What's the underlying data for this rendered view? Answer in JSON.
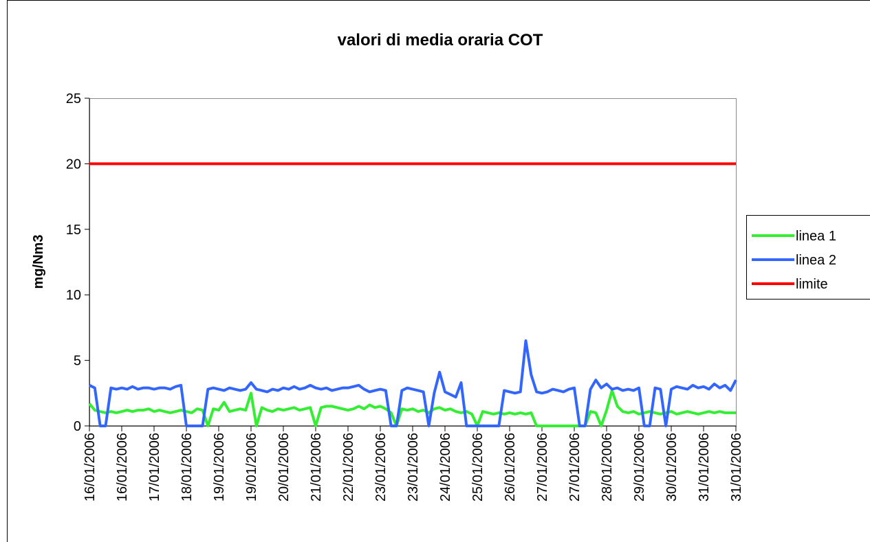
{
  "chart_data": {
    "type": "line",
    "title": "valori di media oraria COT",
    "y_label": "mg/Nm3",
    "categories": [
      "16/01/2006",
      null,
      null,
      null,
      null,
      null,
      "16/01/2006",
      null,
      null,
      null,
      null,
      null,
      "17/01/2006",
      null,
      null,
      null,
      null,
      null,
      "18/01/2006",
      null,
      null,
      null,
      null,
      null,
      "19/01/2006",
      null,
      null,
      null,
      null,
      null,
      "19/01/2006",
      null,
      null,
      null,
      null,
      null,
      "20/01/2006",
      null,
      null,
      null,
      null,
      null,
      "21/01/2006",
      null,
      null,
      null,
      null,
      null,
      "22/01/2006",
      null,
      null,
      null,
      null,
      null,
      "23/01/2006",
      null,
      null,
      null,
      null,
      null,
      "23/01/2006",
      null,
      null,
      null,
      null,
      null,
      "24/01/2006",
      null,
      null,
      null,
      null,
      null,
      "25/01/2006",
      null,
      null,
      null,
      null,
      null,
      "26/01/2006",
      null,
      null,
      null,
      null,
      null,
      "27/01/2006",
      null,
      null,
      null,
      null,
      null,
      "27/01/2006",
      null,
      null,
      null,
      null,
      null,
      "28/01/2006",
      null,
      null,
      null,
      null,
      null,
      "29/01/2006",
      null,
      null,
      null,
      null,
      null,
      "30/01/2006",
      null,
      null,
      null,
      null,
      null,
      "31/01/2006",
      null,
      null,
      null,
      null,
      null,
      "31/01/2006"
    ],
    "series": [
      {
        "name": "linea 1",
        "color": "#33ee33",
        "values": [
          1.7,
          1.2,
          1.1,
          1.0,
          1.1,
          1.0,
          1.1,
          1.2,
          1.1,
          1.2,
          1.2,
          1.3,
          1.1,
          1.2,
          1.1,
          1.0,
          1.1,
          1.2,
          1.1,
          1.0,
          1.3,
          1.2,
          0,
          1.3,
          1.2,
          1.8,
          1.1,
          1.2,
          1.3,
          1.2,
          2.5,
          0,
          1.4,
          1.2,
          1.1,
          1.3,
          1.2,
          1.3,
          1.4,
          1.2,
          1.3,
          1.4,
          0,
          1.4,
          1.5,
          1.5,
          1.4,
          1.3,
          1.2,
          1.3,
          1.5,
          1.3,
          1.6,
          1.4,
          1.5,
          1.3,
          1.0,
          0,
          1.3,
          1.2,
          1.3,
          1.1,
          1.2,
          1.0,
          1.3,
          1.4,
          1.2,
          1.3,
          1.1,
          1.0,
          1.1,
          0.9,
          0,
          1.1,
          1.0,
          0.9,
          1.0,
          0.9,
          1.0,
          0.9,
          1.0,
          0.9,
          1.0,
          0,
          0,
          0,
          0,
          0,
          0,
          0,
          0,
          0,
          0,
          1.1,
          1.0,
          0,
          1.2,
          2.7,
          1.5,
          1.1,
          1.0,
          1.1,
          0.9,
          1.0,
          1.1,
          1.0,
          0.9,
          1.0,
          1.1,
          0.9,
          1.0,
          1.1,
          1.0,
          0.9,
          1.0,
          1.1,
          1.0,
          1.1,
          1.0,
          1.0,
          1.0
        ]
      },
      {
        "name": "linea 2",
        "color": "#3366ff",
        "values": [
          3.1,
          2.9,
          0,
          0,
          2.9,
          2.8,
          2.9,
          2.8,
          3.0,
          2.8,
          2.9,
          2.9,
          2.8,
          2.9,
          2.9,
          2.8,
          3.0,
          3.1,
          0,
          0,
          0,
          0,
          2.8,
          2.9,
          2.8,
          2.7,
          2.9,
          2.8,
          2.7,
          2.8,
          3.3,
          2.8,
          2.7,
          2.6,
          2.8,
          2.7,
          2.9,
          2.8,
          3.0,
          2.8,
          2.9,
          3.1,
          2.9,
          2.8,
          2.9,
          2.7,
          2.8,
          2.9,
          2.9,
          3.0,
          3.1,
          2.8,
          2.6,
          2.7,
          2.8,
          2.7,
          0,
          0,
          2.7,
          2.9,
          2.8,
          2.7,
          2.6,
          0,
          2.5,
          4.1,
          2.6,
          2.4,
          2.2,
          3.3,
          0,
          0,
          0,
          0,
          0,
          0,
          0,
          2.7,
          2.6,
          2.5,
          2.6,
          6.5,
          3.9,
          2.6,
          2.5,
          2.6,
          2.8,
          2.7,
          2.6,
          2.8,
          2.9,
          0,
          0,
          2.8,
          3.5,
          2.9,
          3.2,
          2.8,
          2.9,
          2.7,
          2.8,
          2.7,
          2.9,
          0,
          0,
          2.9,
          2.8,
          0,
          2.8,
          3.0,
          2.9,
          2.8,
          3.1,
          2.9,
          3.0,
          2.8,
          3.2,
          2.9,
          3.1,
          2.7,
          3.5
        ]
      },
      {
        "name": "limite",
        "color": "#ff0000",
        "values": [
          20,
          20,
          20,
          20,
          20,
          20,
          20,
          20,
          20,
          20,
          20,
          20,
          20,
          20,
          20,
          20,
          20,
          20,
          20,
          20,
          20,
          20,
          20,
          20,
          20,
          20,
          20,
          20,
          20,
          20,
          20,
          20,
          20,
          20,
          20,
          20,
          20,
          20,
          20,
          20,
          20,
          20,
          20,
          20,
          20,
          20,
          20,
          20,
          20,
          20,
          20,
          20,
          20,
          20,
          20,
          20,
          20,
          20,
          20,
          20,
          20,
          20,
          20,
          20,
          20,
          20,
          20,
          20,
          20,
          20,
          20,
          20,
          20,
          20,
          20,
          20,
          20,
          20,
          20,
          20,
          20,
          20,
          20,
          20,
          20,
          20,
          20,
          20,
          20,
          20,
          20,
          20,
          20,
          20,
          20,
          20,
          20,
          20,
          20,
          20,
          20,
          20,
          20,
          20,
          20,
          20,
          20,
          20,
          20,
          20,
          20,
          20,
          20,
          20,
          20,
          20,
          20,
          20,
          20,
          20,
          20
        ]
      }
    ],
    "ylim": [
      0,
      25
    ],
    "yticks": [
      0,
      5,
      10,
      15,
      20,
      25
    ],
    "legend": "right"
  }
}
